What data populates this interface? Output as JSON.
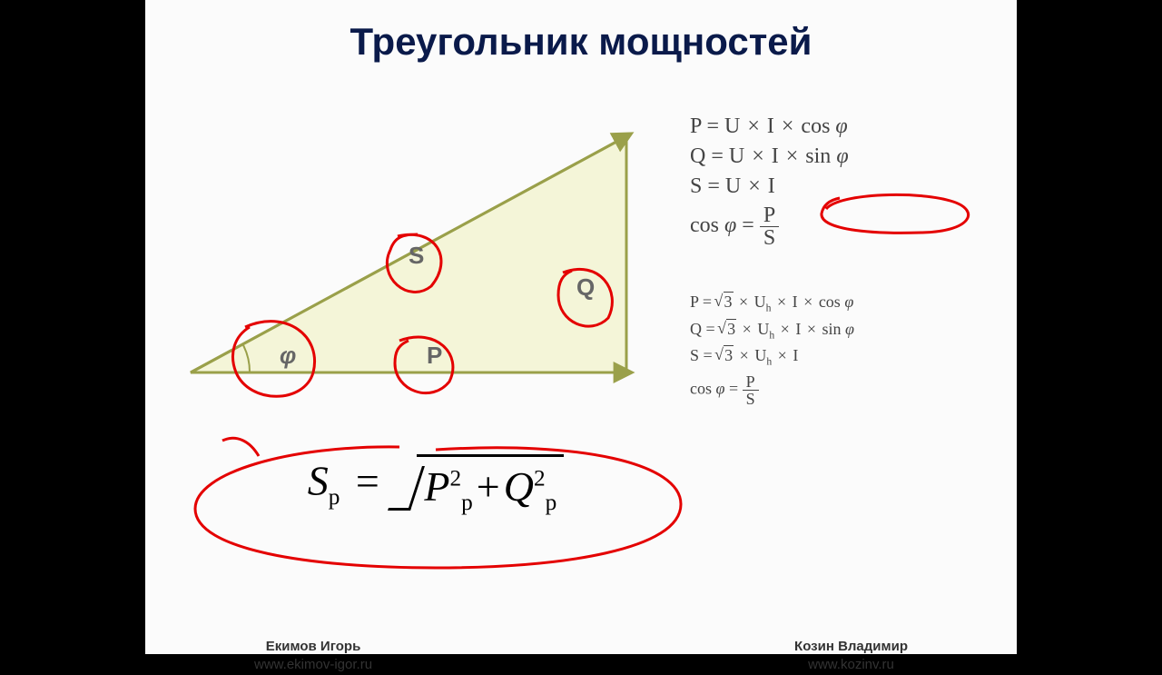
{
  "title": {
    "text": "Треугольник мощностей",
    "fontsize": 42,
    "color": "#0a1a4a"
  },
  "canvas": {
    "bg": "#fbfbfb"
  },
  "triangle": {
    "vertices": {
      "A": [
        30,
        300
      ],
      "B": [
        510,
        300
      ],
      "C": [
        510,
        40
      ]
    },
    "fill": "#f4f5d8",
    "stroke": "#9aa04a",
    "stroke_width": 3,
    "arrow_color": "#9aa04a",
    "labels": {
      "S": "S",
      "Q": "Q",
      "P": "P",
      "phi": "φ"
    },
    "label_fontsize": 26,
    "label_color": "#666666",
    "annotations_color": "#e40000"
  },
  "main_formula": {
    "lhs": "S",
    "lhs_sub": "p",
    "under_sqrt_left": {
      "base": "P",
      "sub": "p",
      "sup": "2"
    },
    "under_sqrt_right": {
      "base": "Q",
      "sub": "p",
      "sup": "2"
    },
    "fontsize": 46,
    "color": "#000000"
  },
  "formulas_single": [
    {
      "text": "P = U × I × cos φ"
    },
    {
      "text": "Q = U × I × sin φ"
    },
    {
      "text": "S = U × I",
      "circled": true
    },
    {
      "type": "cosfrac",
      "lhs": "cos φ",
      "num": "P",
      "den": "S"
    }
  ],
  "formulas_three": [
    {
      "text": "P = √3 × U_h × I × cos φ"
    },
    {
      "text": "Q = √3 × U_h × I × sin φ"
    },
    {
      "text": "S = √3 × U_h × I"
    },
    {
      "type": "cosfrac",
      "lhs": "cos φ",
      "num": "P",
      "den": "S"
    }
  ],
  "formula_style": {
    "fontsize_single": 24,
    "fontsize_three": 18,
    "color": "#444444"
  },
  "credits": {
    "left_name": "Екимов Игорь",
    "left_url": "www.ekimov-igor.ru",
    "right_name": "Козин Владимир",
    "right_url": "www.kozinv.ru",
    "fontsize": 15,
    "color": "#333333"
  }
}
